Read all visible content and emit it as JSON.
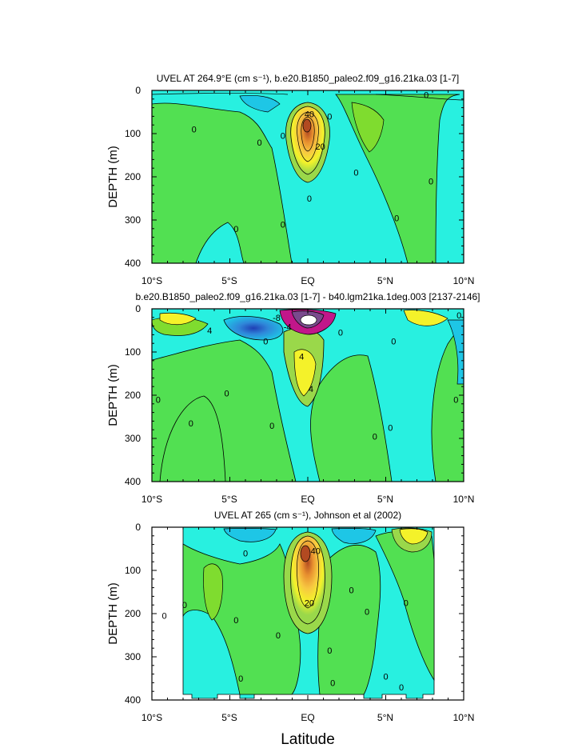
{
  "figure": {
    "xlabel": "Latitude"
  },
  "chart_data": [
    {
      "type": "heatmap",
      "title": "UVEL AT 264.9°E (cm s⁻¹), b.e20.B1850_paleo2.f09_g16.21ka.03 [1-7]",
      "ylabel": "DEPTH (m)",
      "xlim": [
        -10,
        10
      ],
      "ylim": [
        400,
        0
      ],
      "x_ticks": [
        "10°S",
        "5°S",
        "EQ",
        "5°N",
        "10°N"
      ],
      "y_ticks": [
        "0",
        "100",
        "200",
        "300",
        "400"
      ],
      "contour_labels": [
        {
          "text": "40",
          "lat": 0.1,
          "depth": 55
        },
        {
          "text": "20",
          "lat": 0.8,
          "depth": 130
        },
        {
          "text": "0",
          "lat": -7.3,
          "depth": 90
        },
        {
          "text": "0",
          "lat": -3.1,
          "depth": 120
        },
        {
          "text": "0",
          "lat": -1.6,
          "depth": 105
        },
        {
          "text": "0",
          "lat": 1.4,
          "depth": 60
        },
        {
          "text": "0",
          "lat": 3.1,
          "depth": 190
        },
        {
          "text": "0",
          "lat": 0.1,
          "depth": 250
        },
        {
          "text": "0",
          "lat": -1.6,
          "depth": 310
        },
        {
          "text": "0",
          "lat": -4.6,
          "depth": 320
        },
        {
          "text": "0",
          "lat": 5.7,
          "depth": 295
        },
        {
          "text": "0",
          "lat": 7.9,
          "depth": 210
        },
        {
          "text": "0",
          "lat": 7.6,
          "depth": 10
        }
      ]
    },
    {
      "type": "heatmap",
      "title": "b.e20.B1850_paleo2.f09_g16.21ka.03 [1-7] - b40.lgm21ka.1deg.003 [2137-2146]",
      "ylabel": "DEPTH (m)",
      "xlim": [
        -10,
        10
      ],
      "ylim": [
        400,
        0
      ],
      "x_ticks": [
        "10°S",
        "5°S",
        "EQ",
        "5°N",
        "10°N"
      ],
      "y_ticks": [
        "0",
        "100",
        "200",
        "300",
        "400"
      ],
      "contour_labels": [
        {
          "text": "4",
          "lat": -6.3,
          "depth": 50
        },
        {
          "text": "-8",
          "lat": -2.0,
          "depth": 20
        },
        {
          "text": "-4",
          "lat": -1.3,
          "depth": 42
        },
        {
          "text": "4",
          "lat": -0.4,
          "depth": 110
        },
        {
          "text": "4",
          "lat": 0.2,
          "depth": 185
        },
        {
          "text": "0",
          "lat": -9.6,
          "depth": 210
        },
        {
          "text": "0",
          "lat": -7.5,
          "depth": 265
        },
        {
          "text": "0",
          "lat": -5.2,
          "depth": 195
        },
        {
          "text": "0",
          "lat": -2.7,
          "depth": 75
        },
        {
          "text": "0",
          "lat": -2.3,
          "depth": 270
        },
        {
          "text": "0",
          "lat": 2.1,
          "depth": 55
        },
        {
          "text": "0",
          "lat": 5.5,
          "depth": 75
        },
        {
          "text": "0",
          "lat": 5.3,
          "depth": 275
        },
        {
          "text": "0",
          "lat": 4.3,
          "depth": 295
        },
        {
          "text": "0",
          "lat": 9.5,
          "depth": 210
        },
        {
          "text": "0",
          "lat": 9.7,
          "depth": 15
        }
      ]
    },
    {
      "type": "heatmap",
      "title": "UVEL AT 265 (cm s⁻¹), Johnson et al (2002)",
      "ylabel": "DEPTH (m)",
      "xlim": [
        -10,
        10
      ],
      "ylim": [
        400,
        0
      ],
      "x_ticks": [
        "10°S",
        "5°S",
        "EQ",
        "5°N",
        "10°N"
      ],
      "y_ticks": [
        "0",
        "100",
        "200",
        "300",
        "400"
      ],
      "contour_labels": [
        {
          "text": "40",
          "lat": 0.5,
          "depth": 55
        },
        {
          "text": "20",
          "lat": 0.1,
          "depth": 175
        },
        {
          "text": "0",
          "lat": -9.2,
          "depth": 205
        },
        {
          "text": "0",
          "lat": -7.9,
          "depth": 180
        },
        {
          "text": "0",
          "lat": -4.6,
          "depth": 215
        },
        {
          "text": "0",
          "lat": -4.3,
          "depth": 350
        },
        {
          "text": "0",
          "lat": -1.9,
          "depth": 250
        },
        {
          "text": "0",
          "lat": -4.0,
          "depth": 60
        },
        {
          "text": "0",
          "lat": 1.4,
          "depth": 285
        },
        {
          "text": "0",
          "lat": 2.8,
          "depth": 145
        },
        {
          "text": "0",
          "lat": 1.6,
          "depth": 360
        },
        {
          "text": "0",
          "lat": 3.8,
          "depth": 195
        },
        {
          "text": "0",
          "lat": 5.0,
          "depth": 345
        },
        {
          "text": "0",
          "lat": 6.3,
          "depth": 175
        },
        {
          "text": "0",
          "lat": 6.0,
          "depth": 370
        }
      ]
    }
  ]
}
